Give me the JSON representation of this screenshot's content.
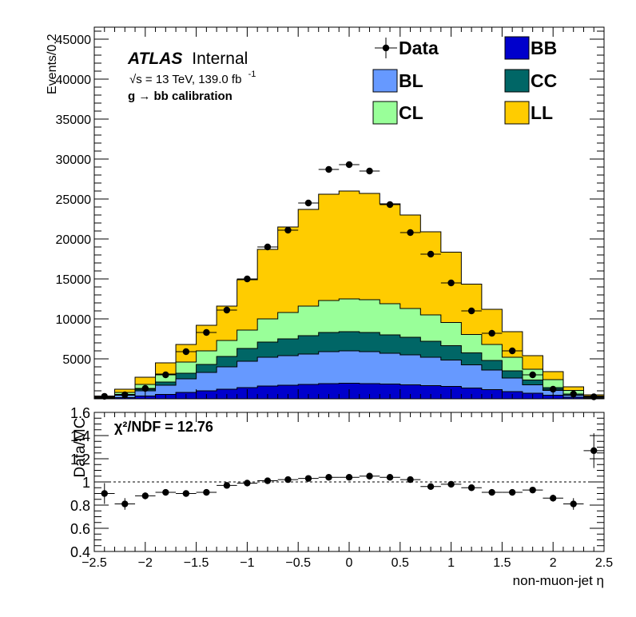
{
  "atlas": {
    "label": "ATLAS",
    "status": "Internal"
  },
  "energy_label": "√s = 13 TeV, 139.0 fb",
  "energy_sup": "-1",
  "process_label": "g  → bb calibration",
  "chi2_label": "χ²/NDF = 12.76",
  "colors": {
    "BB": "#0000cc",
    "BL": "#6699ff",
    "CC": "#006666",
    "CL": "#99ff99",
    "LL": "#ffcc00",
    "Data": "#000000"
  },
  "chart_data": [
    {
      "type": "area",
      "ylabel": "Events/0.2",
      "xlim": [
        -2.5,
        2.5
      ],
      "ylim": [
        0,
        46500
      ],
      "x_ticks": [
        -2.5,
        -2,
        -1.5,
        -1,
        -0.5,
        0,
        0.5,
        1,
        1.5,
        2,
        2.5
      ],
      "y_ticks": [
        5000,
        10000,
        15000,
        20000,
        25000,
        30000,
        35000,
        40000,
        45000
      ],
      "y_tick_labels": [
        "5000",
        "10000",
        "15000",
        "20000",
        "25000",
        "30000",
        "35000",
        "40000",
        "45000"
      ],
      "bin_edges": [
        -2.5,
        -2.3,
        -2.1,
        -1.9,
        -1.7,
        -1.5,
        -1.3,
        -1.1,
        -0.9,
        -0.7,
        -0.5,
        -0.3,
        -0.1,
        0.1,
        0.3,
        0.5,
        0.7,
        0.9,
        1.1,
        1.3,
        1.5,
        1.7,
        1.9,
        2.1,
        2.3,
        2.5
      ],
      "legend": [
        {
          "name": "Data",
          "kind": "marker"
        },
        {
          "name": "BB",
          "kind": "fill"
        },
        {
          "name": "BL",
          "kind": "fill"
        },
        {
          "name": "CC",
          "kind": "fill"
        },
        {
          "name": "CL",
          "kind": "fill"
        },
        {
          "name": "LL",
          "kind": "fill"
        }
      ],
      "stack_order": [
        "BB",
        "BL",
        "CC",
        "CL",
        "LL"
      ],
      "stack": {
        "BB": [
          30,
          150,
          350,
          550,
          800,
          1000,
          1200,
          1400,
          1600,
          1700,
          1800,
          1900,
          1950,
          1900,
          1850,
          1750,
          1650,
          1550,
          1350,
          1150,
          900,
          700,
          450,
          200,
          80
        ],
        "BL": [
          70,
          300,
          650,
          1150,
          1700,
          2300,
          2800,
          3300,
          3600,
          3700,
          3800,
          4000,
          4050,
          4000,
          3850,
          3750,
          3550,
          3300,
          2900,
          2450,
          1700,
          1050,
          600,
          250,
          90
        ],
        "CC": [
          20,
          100,
          200,
          400,
          700,
          1000,
          1300,
          1600,
          1900,
          2100,
          2300,
          2400,
          2400,
          2400,
          2300,
          2200,
          2000,
          1800,
          1500,
          1200,
          900,
          600,
          350,
          150,
          50
        ],
        "CL": [
          80,
          250,
          600,
          1000,
          1400,
          1700,
          2000,
          2300,
          2900,
          3300,
          3700,
          4000,
          4100,
          4100,
          3900,
          3600,
          3300,
          2900,
          2300,
          2000,
          1700,
          1350,
          1000,
          450,
          120
        ],
        "LL": [
          150,
          400,
          900,
          1400,
          2200,
          3200,
          4300,
          6300,
          8700,
          10700,
          12100,
          13300,
          13500,
          13300,
          12500,
          11700,
          10400,
          8800,
          6300,
          4400,
          3200,
          1700,
          1000,
          450,
          160
        ]
      },
      "data_points": {
        "x": [
          -2.4,
          -2.2,
          -2.0,
          -1.8,
          -1.6,
          -1.4,
          -1.2,
          -1.0,
          -0.8,
          -0.6,
          -0.4,
          -0.2,
          0.0,
          0.2,
          0.4,
          0.6,
          0.8,
          1.0,
          1.2,
          1.4,
          1.6,
          1.8,
          2.0,
          2.2,
          2.4
        ],
        "y": [
          310,
          500,
          1300,
          3000,
          5900,
          8300,
          11100,
          15000,
          19000,
          21100,
          24500,
          28700,
          29300,
          28500,
          24300,
          20800,
          18100,
          14500,
          11000,
          8200,
          6000,
          3000,
          1200,
          600,
          250
        ]
      }
    },
    {
      "type": "scatter",
      "xlabel": "non-muon-jet η",
      "ylabel": "Data/MC",
      "xlim": [
        -2.5,
        2.5
      ],
      "ylim": [
        0.4,
        1.6
      ],
      "x_ticks": [
        -2.5,
        -2,
        -1.5,
        -1,
        -0.5,
        0,
        0.5,
        1,
        1.5,
        2,
        2.5
      ],
      "x_tick_labels": [
        "−2.5",
        "−2",
        "−1.5",
        "−1",
        "−0.5",
        "0",
        "0.5",
        "1",
        "1.5",
        "2",
        "2.5"
      ],
      "y_ticks": [
        0.4,
        0.6,
        0.8,
        1,
        1.2,
        1.4,
        1.6
      ],
      "y_tick_labels": [
        "0.4",
        "0.6",
        "0.8",
        "1",
        "1.2",
        "1.4",
        "1.6"
      ],
      "reference_line": 1.0,
      "x": [
        -2.4,
        -2.2,
        -2.0,
        -1.8,
        -1.6,
        -1.4,
        -1.2,
        -1.0,
        -0.8,
        -0.6,
        -0.4,
        -0.2,
        0.0,
        0.2,
        0.4,
        0.6,
        0.8,
        1.0,
        1.2,
        1.4,
        1.6,
        1.8,
        2.0,
        2.2,
        2.4
      ],
      "y": [
        0.9,
        0.81,
        0.88,
        0.91,
        0.9,
        0.91,
        0.97,
        0.99,
        1.01,
        1.02,
        1.03,
        1.04,
        1.04,
        1.05,
        1.04,
        1.02,
        0.96,
        0.98,
        0.95,
        0.91,
        0.91,
        0.93,
        0.86,
        0.81,
        1.27
      ],
      "y_err": [
        0.09,
        0.05,
        0.03,
        0.02,
        0.015,
        0.012,
        0.01,
        0.01,
        0.01,
        0.008,
        0.008,
        0.008,
        0.008,
        0.008,
        0.008,
        0.008,
        0.01,
        0.01,
        0.012,
        0.012,
        0.015,
        0.02,
        0.03,
        0.05,
        0.15
      ]
    }
  ]
}
